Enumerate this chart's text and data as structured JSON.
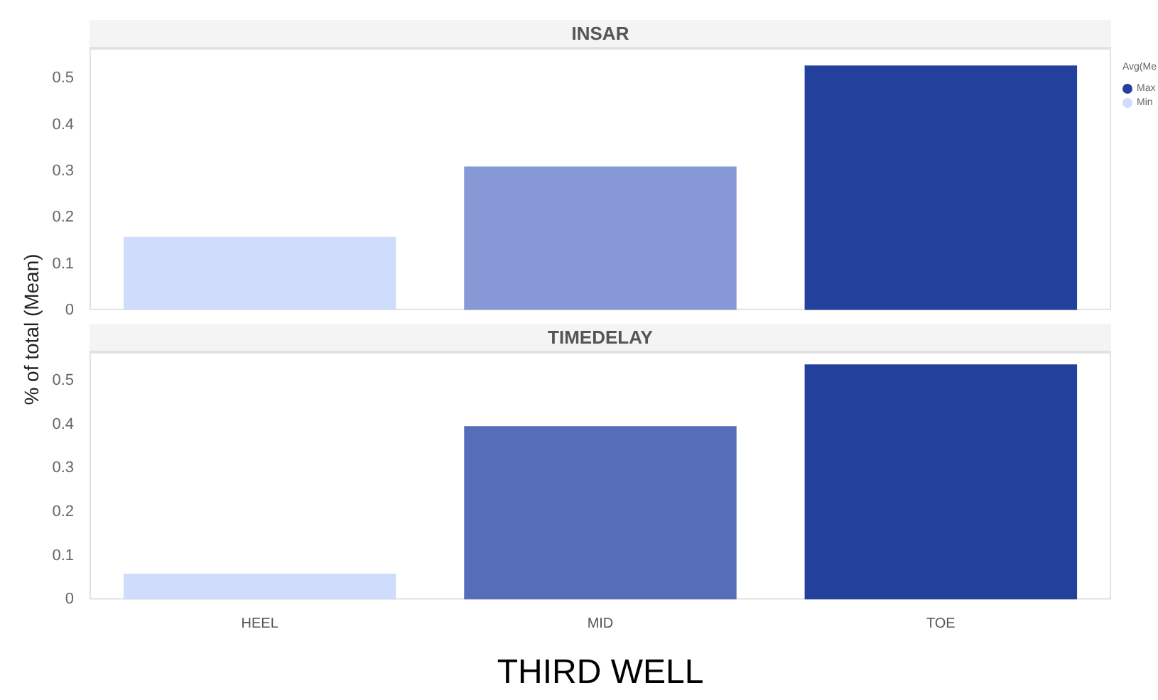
{
  "chart_data": [
    {
      "type": "bar",
      "title": "INSAR",
      "ylabel": "% of total (Mean)",
      "legend_title": "Avg(Me",
      "annotations": [
        "Max",
        "Min"
      ],
      "categories": [
        null,
        null,
        null
      ],
      "values": [
        0.158,
        0.31,
        0.528
      ],
      "colors": [
        "#cfdcfb",
        "#8699d6",
        "#22409c"
      ],
      "ylim": [
        0,
        0.565
      ],
      "yticks": [
        0,
        0.1,
        0.2,
        0.3,
        0.4,
        0.5
      ],
      "tick_labels": "y"
    },
    {
      "type": "bar",
      "title": "TIMEDELAY",
      "xlabel": "THIRD WELL",
      "categories": [
        "HEEL",
        "MID",
        "TOE"
      ],
      "values": [
        0.059,
        0.396,
        0.537
      ],
      "colors": [
        "#cfdcfb",
        "#566eba",
        "#22409c"
      ],
      "ylim": [
        0,
        0.565
      ],
      "yticks": [
        0,
        0.1,
        0.2,
        0.3,
        0.4,
        0.5
      ]
    }
  ]
}
